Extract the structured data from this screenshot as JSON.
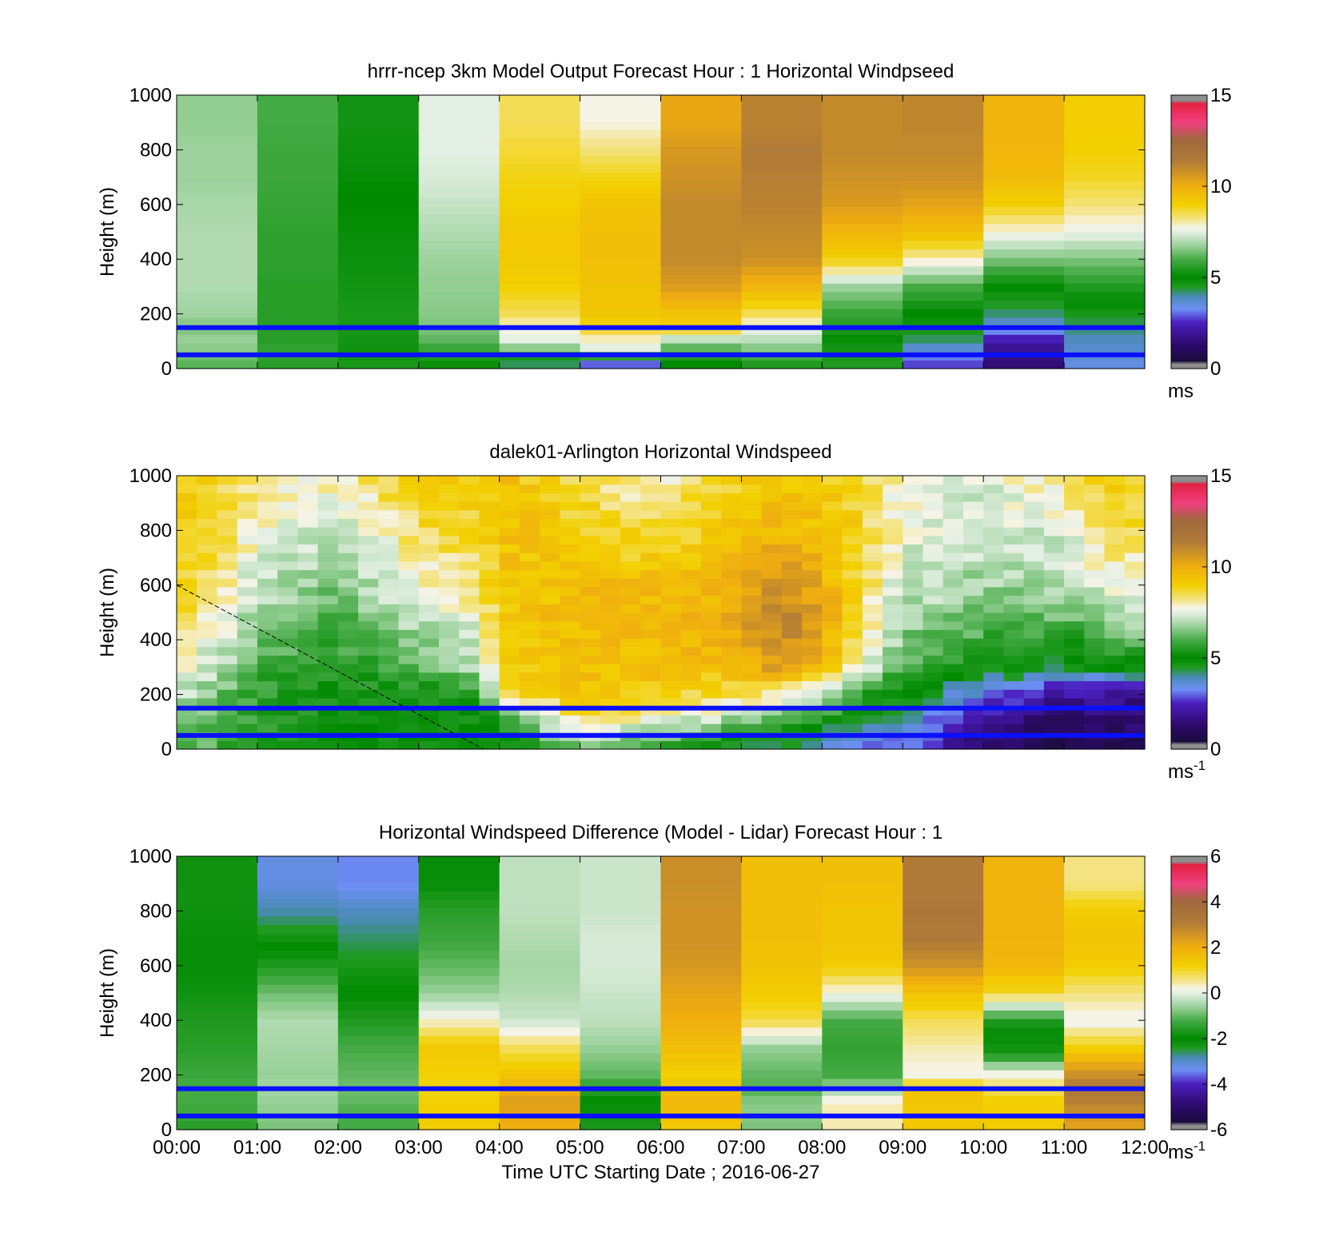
{
  "chart_data": [
    {
      "type": "heatmap",
      "title": "hrrr-ncep 3km Model Output   Forecast Hour : 1 Horizontal Windpseed",
      "ylabel": "Height (m)",
      "xlabel": "",
      "ylim": [
        0,
        1000
      ],
      "yticks": [
        "0",
        "200",
        "400",
        "600",
        "800",
        "1000"
      ],
      "colorbar": {
        "range": [
          0,
          15
        ],
        "ticks": [
          "0",
          "5",
          "10",
          "15"
        ],
        "unit": "ms",
        "unit_sup": ""
      },
      "value_range": [
        0,
        15
      ],
      "time_bins": 12,
      "reference_lines_m": [
        150,
        50
      ],
      "heights_m": [
        25,
        60,
        100,
        150,
        200,
        300,
        400,
        500,
        600,
        700,
        800,
        900,
        1000
      ],
      "columns": [
        [
          6.2,
          6.5,
          6.8,
          6.5,
          6.8,
          7.0,
          7.0,
          7.0,
          6.9,
          6.8,
          6.8,
          6.7,
          6.7
        ],
        [
          5.6,
          5.8,
          5.6,
          5.6,
          5.6,
          5.6,
          5.7,
          5.7,
          5.8,
          5.9,
          5.9,
          6.0,
          6.0
        ],
        [
          4.6,
          4.8,
          4.7,
          4.6,
          4.6,
          4.7,
          4.8,
          4.9,
          5.0,
          5.1,
          5.2,
          5.3,
          5.3
        ],
        [
          5.2,
          5.6,
          6.2,
          6.5,
          6.6,
          6.7,
          6.8,
          7.0,
          7.2,
          7.4,
          7.5,
          7.5,
          7.5
        ],
        [
          4.3,
          6.0,
          7.5,
          7.8,
          8.5,
          9.0,
          9.2,
          9.2,
          9.0,
          8.9,
          8.7,
          8.5,
          8.5
        ],
        [
          3.0,
          7.3,
          7.8,
          8.8,
          9.3,
          9.4,
          9.5,
          9.5,
          9.4,
          8.9,
          8.3,
          7.8,
          7.8
        ],
        [
          5.0,
          5.8,
          6.8,
          9.0,
          9.4,
          10.5,
          11.0,
          11.0,
          11.0,
          10.8,
          10.6,
          10.2,
          10.2
        ],
        [
          5.5,
          6.3,
          7.0,
          7.6,
          8.5,
          9.8,
          10.8,
          11.0,
          11.2,
          11.3,
          11.4,
          11.2,
          11.2
        ],
        [
          4.5,
          4.6,
          4.8,
          5.5,
          5.8,
          6.8,
          9.0,
          9.8,
          10.5,
          10.8,
          11.0,
          11.0,
          11.0
        ],
        [
          2.8,
          3.4,
          4.2,
          4.7,
          5.0,
          6.0,
          8.0,
          9.5,
          10.3,
          10.8,
          11.0,
          11.1,
          11.1
        ],
        [
          1.5,
          1.7,
          2.2,
          3.5,
          4.2,
          5.0,
          6.5,
          7.8,
          9.0,
          9.6,
          9.8,
          9.8,
          9.8
        ],
        [
          3.5,
          3.7,
          3.8,
          4.2,
          4.6,
          5.5,
          6.5,
          7.6,
          8.3,
          8.8,
          9.0,
          9.1,
          9.1
        ]
      ]
    },
    {
      "type": "heatmap",
      "title": "dalek01-Arlington  Horizontal Windspeed",
      "ylabel": "Height (m)",
      "xlabel": "",
      "ylim": [
        0,
        1000
      ],
      "yticks": [
        "0",
        "200",
        "400",
        "600",
        "800",
        "1000"
      ],
      "colorbar": {
        "range": [
          0,
          15
        ],
        "ticks": [
          "0",
          "5",
          "10",
          "15"
        ],
        "unit": "ms",
        "unit_sup": "-1"
      },
      "value_range": [
        0,
        15
      ],
      "time_bins": 48,
      "reference_lines_m": [
        150,
        50
      ],
      "trend_line": {
        "x_hours": [
          0,
          3.8
        ],
        "y_m": [
          600,
          0
        ]
      },
      "anchor_hours": [
        0,
        0.5,
        1,
        2,
        3,
        3.8,
        4,
        5,
        6,
        6.8,
        7.5,
        8,
        8.5,
        9,
        10,
        11,
        11.5,
        11.9
      ],
      "anchor_heights_m": [
        25,
        100,
        200,
        300,
        450,
        600,
        800,
        1000
      ],
      "anchor_profiles": [
        [
          6.5,
          6.8,
          7.2,
          7.8,
          8.5,
          8.8,
          9.0,
          9.0
        ],
        [
          6.0,
          6.2,
          6.5,
          7.0,
          7.8,
          8.3,
          8.7,
          8.8
        ],
        [
          5.5,
          5.6,
          5.8,
          6.0,
          6.5,
          7.2,
          7.8,
          8.2
        ],
        [
          5.0,
          5.0,
          5.2,
          5.5,
          6.0,
          6.5,
          7.2,
          8.0
        ],
        [
          4.9,
          5.0,
          5.2,
          6.2,
          7.0,
          7.8,
          8.5,
          9.0
        ],
        [
          4.8,
          4.8,
          5.5,
          7.0,
          7.6,
          8.3,
          8.8,
          9.2
        ],
        [
          4.8,
          5.2,
          8.5,
          9.0,
          9.2,
          9.3,
          9.5,
          9.5
        ],
        [
          6.5,
          8.5,
          9.2,
          9.5,
          9.6,
          9.6,
          9.0,
          8.5
        ],
        [
          6.0,
          7.5,
          9.0,
          9.5,
          9.8,
          9.5,
          8.5,
          7.8
        ],
        [
          5.0,
          6.8,
          8.5,
          9.5,
          10.0,
          9.8,
          9.3,
          8.8
        ],
        [
          4.2,
          5.8,
          8.0,
          10.5,
          11.3,
          10.8,
          9.8,
          9.2
        ],
        [
          3.8,
          5.2,
          7.0,
          9.5,
          10.5,
          10.0,
          9.5,
          9.0
        ],
        [
          3.3,
          4.6,
          5.8,
          7.5,
          8.3,
          8.5,
          8.8,
          8.8
        ],
        [
          3.0,
          3.8,
          4.8,
          6.0,
          6.8,
          7.3,
          7.6,
          7.8
        ],
        [
          1.2,
          2.0,
          3.2,
          5.0,
          6.2,
          6.8,
          7.2,
          7.5
        ],
        [
          0.8,
          1.2,
          2.0,
          4.2,
          6.0,
          7.0,
          7.5,
          8.2
        ],
        [
          0.8,
          1.2,
          2.0,
          4.8,
          6.5,
          7.6,
          8.5,
          9.0
        ],
        [
          0.9,
          1.3,
          2.0,
          5.0,
          6.8,
          7.8,
          8.6,
          9.0
        ]
      ]
    },
    {
      "type": "heatmap",
      "title": "Horizontal Windspeed Difference (Model - Lidar) Forecast Hour : 1",
      "ylabel": "Height (m)",
      "xlabel": "Time UTC  Starting Date ; 2016-06-27",
      "ylim": [
        0,
        1000
      ],
      "yticks": [
        "0",
        "200",
        "400",
        "600",
        "800",
        "1000"
      ],
      "xticks": [
        "00:00",
        "01:00",
        "02:00",
        "03:00",
        "04:00",
        "05:00",
        "06:00",
        "07:00",
        "08:00",
        "09:00",
        "10:00",
        "11:00",
        "12:00"
      ],
      "colorbar": {
        "range": [
          -6,
          6
        ],
        "ticks": [
          "-6",
          "-4",
          "-2",
          "0",
          "2",
          "4",
          "6"
        ],
        "unit": "ms",
        "unit_sup": "-1"
      },
      "value_range": [
        -6,
        6
      ],
      "time_bins": 12,
      "reference_lines_m": [
        150,
        50
      ],
      "heights_m": [
        25,
        60,
        100,
        150,
        200,
        300,
        400,
        500,
        600,
        700,
        800,
        900,
        1000
      ],
      "columns": [
        [
          -1.5,
          -1.3,
          -1.2,
          -1.2,
          -1.3,
          -1.5,
          -1.6,
          -1.8,
          -1.9,
          -1.9,
          -1.8,
          -1.8,
          -1.8
        ],
        [
          -0.8,
          -0.7,
          -0.6,
          -0.5,
          -0.6,
          -0.5,
          -0.4,
          -0.9,
          -1.6,
          -2.2,
          -2.8,
          -3.2,
          -3.2
        ],
        [
          -1.2,
          -1.2,
          -1.0,
          -0.9,
          -1.0,
          -1.2,
          -1.6,
          -2.0,
          -2.3,
          -2.6,
          -2.9,
          -3.4,
          -3.4
        ],
        [
          1.3,
          1.3,
          1.2,
          1.1,
          1.2,
          1.4,
          0.3,
          -0.6,
          -1.0,
          -1.3,
          -1.5,
          -1.9,
          -1.9
        ],
        [
          2.0,
          2.2,
          2.4,
          2.0,
          1.5,
          0.8,
          -0.2,
          -0.4,
          -0.5,
          -0.4,
          -0.3,
          -0.3,
          -0.3
        ],
        [
          -2.3,
          -2.2,
          -2.0,
          -1.5,
          -1.0,
          -0.6,
          -0.3,
          -0.2,
          -0.1,
          -0.1,
          -0.2,
          -0.2,
          -0.2
        ],
        [
          1.4,
          1.6,
          1.8,
          1.6,
          1.2,
          1.6,
          2.0,
          2.2,
          2.5,
          2.6,
          2.6,
          2.7,
          2.7
        ],
        [
          -0.8,
          -0.7,
          -0.7,
          -1.1,
          -1.0,
          -0.6,
          0.9,
          1.3,
          1.5,
          1.6,
          1.6,
          1.6,
          1.6
        ],
        [
          0.4,
          0.4,
          0.4,
          -0.5,
          -1.2,
          -1.4,
          -1.2,
          0.2,
          1.3,
          1.5,
          1.5,
          1.6,
          1.6
        ],
        [
          1.4,
          1.4,
          1.5,
          1.5,
          0.2,
          0.4,
          0.8,
          1.5,
          2.6,
          3.2,
          3.3,
          3.2,
          3.2
        ],
        [
          1.3,
          1.3,
          1.3,
          0.8,
          0.3,
          -2.3,
          -1.6,
          1.0,
          1.8,
          1.9,
          1.9,
          1.9,
          1.9
        ],
        [
          2.3,
          2.6,
          3.0,
          3.3,
          2.7,
          1.2,
          0.1,
          0.6,
          1.3,
          1.5,
          1.3,
          0.6,
          0.6
        ]
      ]
    }
  ]
}
